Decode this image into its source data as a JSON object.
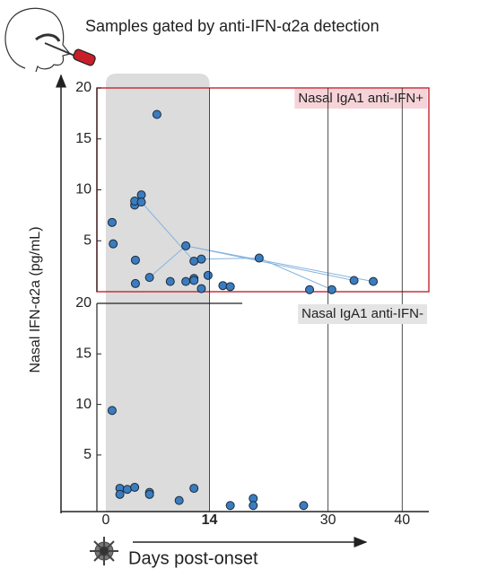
{
  "chart_data": [
    {
      "type": "scatter",
      "title": "Samples gated by anti-IFN-α2a detection",
      "ylabel": "Nasal IFN-α2a (pg/mL)",
      "annotation": "Nasal IgA1 anti-IFN+",
      "annotation_color": "#f6d3d8",
      "frame_color": "#c8323c",
      "xlim": [
        -1.2,
        43.6
      ],
      "ylim": [
        0,
        20
      ],
      "yticks": [
        5,
        10,
        15,
        20
      ],
      "shade": [
        0,
        14
      ],
      "shade_color": "#dcdcdc",
      "series": [
        {
          "color": "#3b7cc0",
          "x": [
            0.85,
            1,
            3.9,
            3.9,
            4.8,
            4.8,
            6.9,
            4,
            4,
            5.9,
            8.7,
            10.8,
            10.8,
            11.9,
            12.9,
            11.9,
            11.9,
            12.9,
            13.8,
            15.8,
            16.8,
            20.7,
            27.5,
            30.5,
            33.5,
            36.1
          ],
          "values": [
            6.8,
            4.7,
            8.5,
            8.9,
            9.5,
            8.8,
            17.4,
            3.1,
            0.8,
            1.4,
            1.0,
            1.0,
            4.5,
            3.0,
            3.2,
            1.3,
            1.1,
            0.3,
            1.6,
            0.6,
            0.5,
            3.3,
            0.2,
            0.2,
            1.1,
            1.0
          ]
        }
      ],
      "lines": [
        {
          "color": "#86b3de",
          "x": [
            4.8,
            11.9
          ],
          "values": [
            8.8,
            3.0
          ]
        },
        {
          "color": "#86b3de",
          "x": [
            5.9,
            10.8,
            36.1
          ],
          "values": [
            1.4,
            4.5,
            1.0
          ]
        },
        {
          "color": "#86b3de",
          "x": [
            10.8,
            33.5
          ],
          "values": [
            4.5,
            1.1
          ]
        },
        {
          "color": "#86b3de",
          "x": [
            12.9,
            20.7,
            30.5
          ],
          "values": [
            3.2,
            3.3,
            0.2
          ]
        }
      ]
    },
    {
      "type": "scatter",
      "annotation": "Nasal IgA1 anti-IFN-",
      "annotation_color": "#e4e4e4",
      "xlabel": "Days post-onset",
      "xlim": [
        -1.2,
        43.6
      ],
      "ylim": [
        -0.6,
        20
      ],
      "yticks": [
        5,
        10,
        15,
        20
      ],
      "xticks": [
        0,
        14,
        30,
        40
      ],
      "shade": [
        0,
        14
      ],
      "shade_color": "#dcdcdc",
      "series": [
        {
          "color": "#3b7cc0",
          "x": [
            0.85,
            1.9,
            1.9,
            2.9,
            3.9,
            5.9,
            5.9,
            9.9,
            11.9,
            16.8,
            19.9,
            19.9,
            26.7
          ],
          "values": [
            9.4,
            1.7,
            1.1,
            1.6,
            1.8,
            1.3,
            1.1,
            0.5,
            1.7,
            0,
            0.7,
            0,
            0
          ]
        }
      ]
    }
  ]
}
